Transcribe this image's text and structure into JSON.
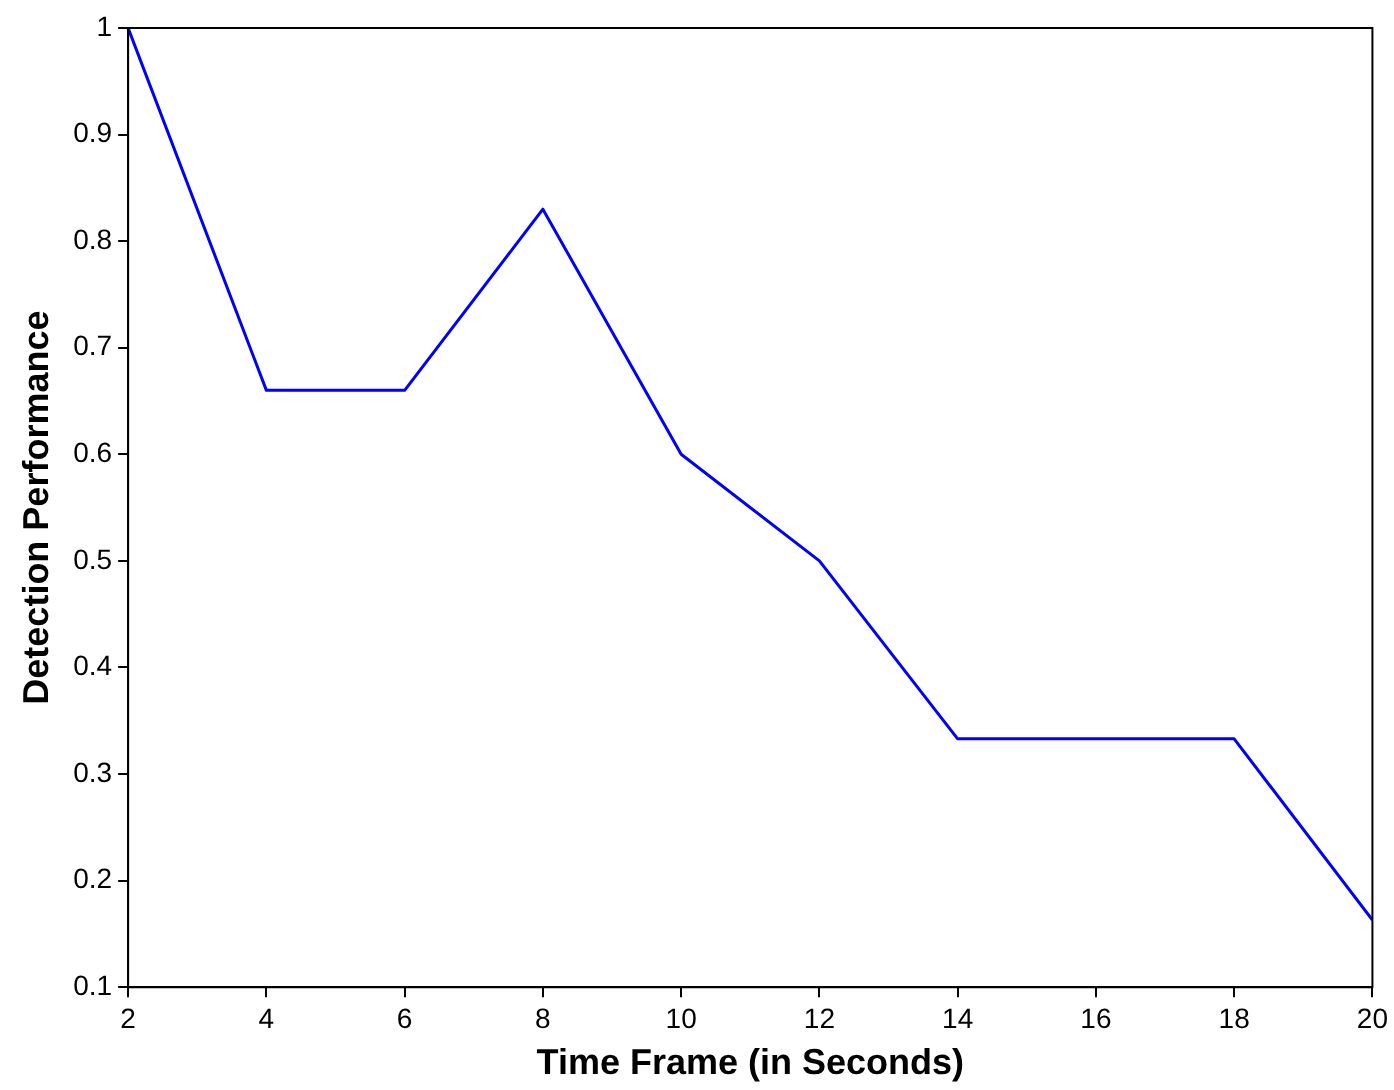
{
  "chart_data": {
    "type": "line",
    "xlabel": "Time Frame (in Seconds)",
    "ylabel": "Detection Performance",
    "x": [
      2,
      4,
      6,
      8,
      10,
      12,
      14,
      16,
      18,
      20
    ],
    "series": [
      {
        "color": "#0000ff",
        "values": [
          1,
          0.66,
          0.66,
          0.83,
          0.6,
          0.5,
          0.333,
          0.333,
          0.333,
          0.163
        ]
      }
    ],
    "xlim": [
      2,
      20
    ],
    "xticks": [
      2,
      4,
      6,
      8,
      10,
      12,
      14,
      16,
      18,
      20
    ],
    "ylim": [
      0.1,
      1
    ],
    "yticks": [
      0.1,
      0.2,
      0.3,
      0.4,
      0.5,
      0.6,
      0.7,
      0.8,
      0.9,
      1
    ],
    "grid": false,
    "legend": false,
    "marker": "none",
    "line_style": "solid"
  }
}
